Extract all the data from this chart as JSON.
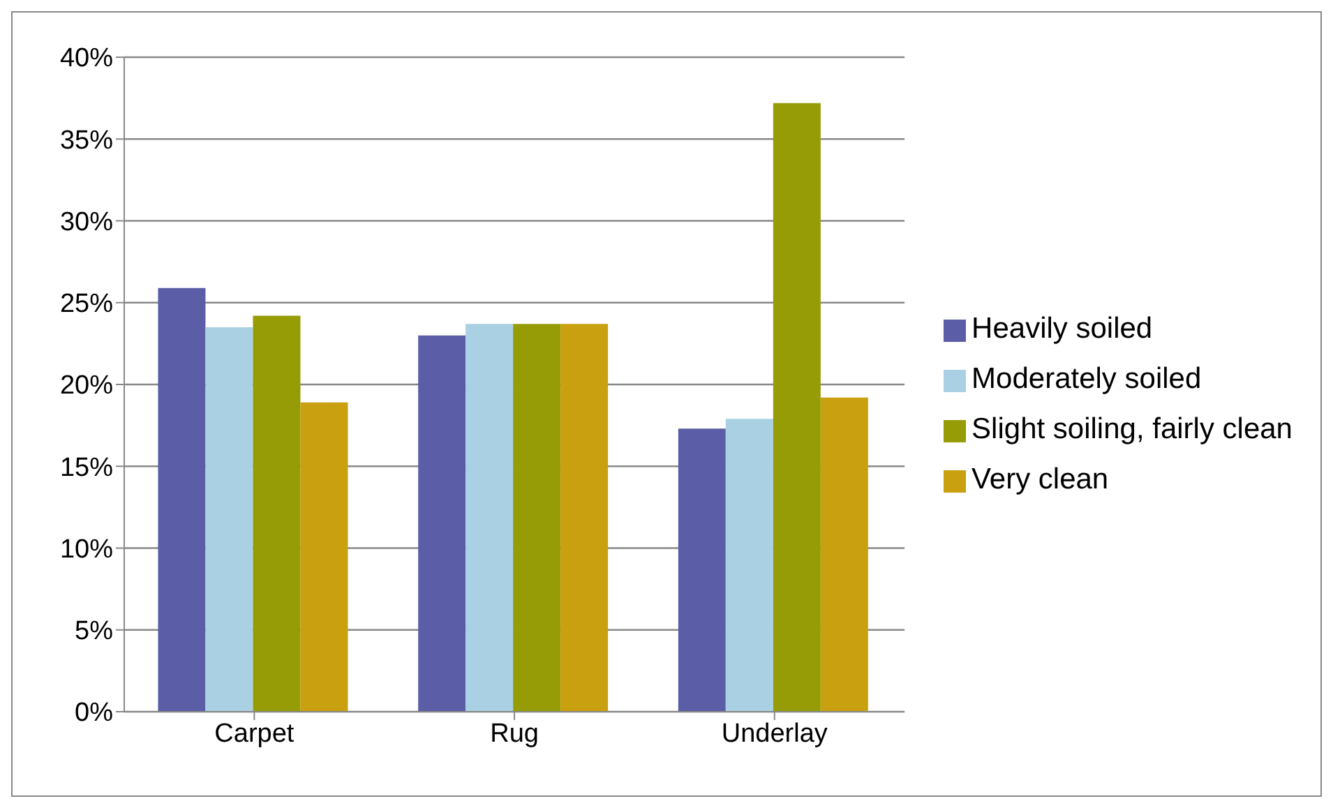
{
  "chart_data": {
    "type": "bar",
    "categories": [
      "Carpet",
      "Rug",
      "Underlay"
    ],
    "series": [
      {
        "name": "Heavily soiled",
        "color": "#5b5ea6",
        "values": [
          25.9,
          23.0,
          17.3
        ]
      },
      {
        "name": "Moderately soiled",
        "color": "#a9d1e3",
        "values": [
          23.5,
          23.7,
          17.9
        ]
      },
      {
        "name": "Slight soiling, fairly clean",
        "color": "#969c06",
        "values": [
          24.2,
          23.7,
          37.2
        ]
      },
      {
        "name": "Very clean",
        "color": "#c9a00f",
        "values": [
          18.9,
          23.7,
          19.2
        ]
      }
    ],
    "ylim": [
      0,
      40
    ],
    "yticks": [
      {
        "value": 0,
        "label": "0%"
      },
      {
        "value": 5,
        "label": "5%"
      },
      {
        "value": 10,
        "label": "10%"
      },
      {
        "value": 15,
        "label": "15%"
      },
      {
        "value": 20,
        "label": "20%"
      },
      {
        "value": 25,
        "label": "25%"
      },
      {
        "value": 30,
        "label": "30%"
      },
      {
        "value": 35,
        "label": "35%"
      },
      {
        "value": 40,
        "label": "40%"
      }
    ],
    "grid": "y",
    "legend": "right"
  }
}
